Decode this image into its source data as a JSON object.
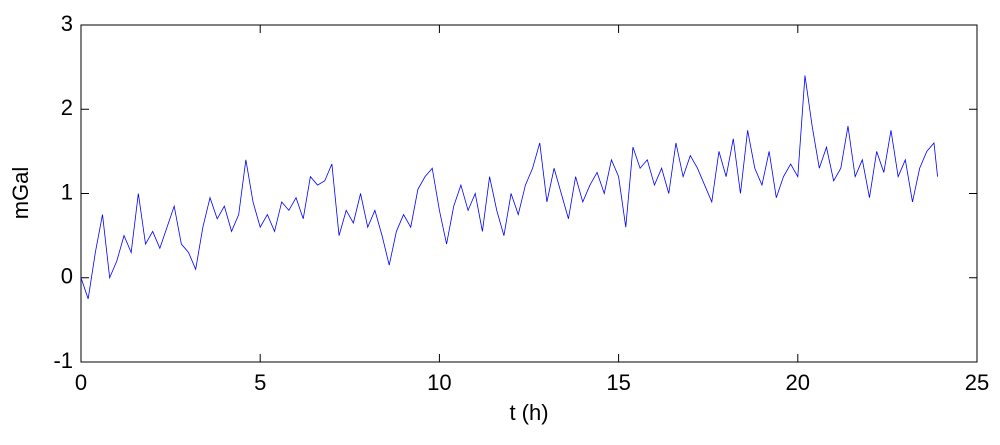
{
  "chart_data": {
    "type": "line",
    "xlabel": "t (h)",
    "ylabel": "mGal",
    "color": "#0000ff",
    "x": [
      0,
      0.2,
      0.4,
      0.6,
      0.8,
      1,
      1.2,
      1.4,
      1.6,
      1.8,
      2,
      2.2,
      2.4,
      2.6,
      2.8,
      3,
      3.2,
      3.4,
      3.6,
      3.8,
      4,
      4.2,
      4.4,
      4.6,
      4.8,
      5,
      5.2,
      5.4,
      5.6,
      5.8,
      6,
      6.2,
      6.4,
      6.6,
      6.8,
      7,
      7.2,
      7.4,
      7.6,
      7.8,
      8,
      8.2,
      8.4,
      8.6,
      8.8,
      9,
      9.2,
      9.4,
      9.6,
      9.8,
      10,
      10.2,
      10.4,
      10.6,
      10.8,
      11,
      11.2,
      11.4,
      11.6,
      11.8,
      12,
      12.2,
      12.4,
      12.6,
      12.8,
      13,
      13.2,
      13.4,
      13.6,
      13.8,
      14,
      14.2,
      14.4,
      14.6,
      14.8,
      15,
      15.2,
      15.4,
      15.6,
      15.8,
      16,
      16.2,
      16.4,
      16.6,
      16.8,
      17,
      17.2,
      17.4,
      17.6,
      17.8,
      18,
      18.2,
      18.4,
      18.6,
      18.8,
      19,
      19.2,
      19.4,
      19.6,
      19.8,
      20,
      20.2,
      20.4,
      20.6,
      20.8,
      21,
      21.2,
      21.4,
      21.6,
      21.8,
      22,
      22.2,
      22.4,
      22.6,
      22.8,
      23,
      23.2,
      23.4,
      23.6,
      23.8,
      23.9
    ],
    "values": [
      0,
      -0.25,
      0.3,
      0.75,
      0,
      0.2,
      0.5,
      0.3,
      1,
      0.4,
      0.55,
      0.35,
      0.6,
      0.85,
      0.4,
      0.3,
      0.1,
      0.6,
      0.95,
      0.7,
      0.85,
      0.55,
      0.75,
      1.4,
      0.9,
      0.6,
      0.75,
      0.55,
      0.9,
      0.8,
      0.95,
      0.7,
      1.2,
      1.1,
      1.15,
      1.35,
      0.5,
      0.8,
      0.65,
      1,
      0.6,
      0.8,
      0.5,
      0.15,
      0.55,
      0.75,
      0.6,
      1.05,
      1.2,
      1.3,
      0.8,
      0.4,
      0.85,
      1.1,
      0.8,
      1,
      0.55,
      1.2,
      0.8,
      0.5,
      1,
      0.75,
      1.1,
      1.3,
      1.6,
      0.9,
      1.3,
      1,
      0.7,
      1.2,
      0.9,
      1.1,
      1.25,
      1,
      1.4,
      1.2,
      0.6,
      1.55,
      1.3,
      1.4,
      1.1,
      1.3,
      1,
      1.6,
      1.2,
      1.45,
      1.3,
      1.1,
      0.9,
      1.5,
      1.2,
      1.65,
      1,
      1.75,
      1.3,
      1.1,
      1.5,
      0.95,
      1.2,
      1.35,
      1.2,
      2.4,
      1.8,
      1.3,
      1.55,
      1.15,
      1.3,
      1.8,
      1.2,
      1.4,
      0.95,
      1.5,
      1.25,
      1.75,
      1.2,
      1.4,
      0.9,
      1.3,
      1.5,
      1.6,
      1.2
    ],
    "xlim": [
      0,
      25
    ],
    "xticks": [
      0,
      5,
      10,
      15,
      20,
      25
    ],
    "ylim": [
      -1,
      3
    ],
    "yticks": [
      -1,
      0,
      1,
      2,
      3
    ]
  }
}
